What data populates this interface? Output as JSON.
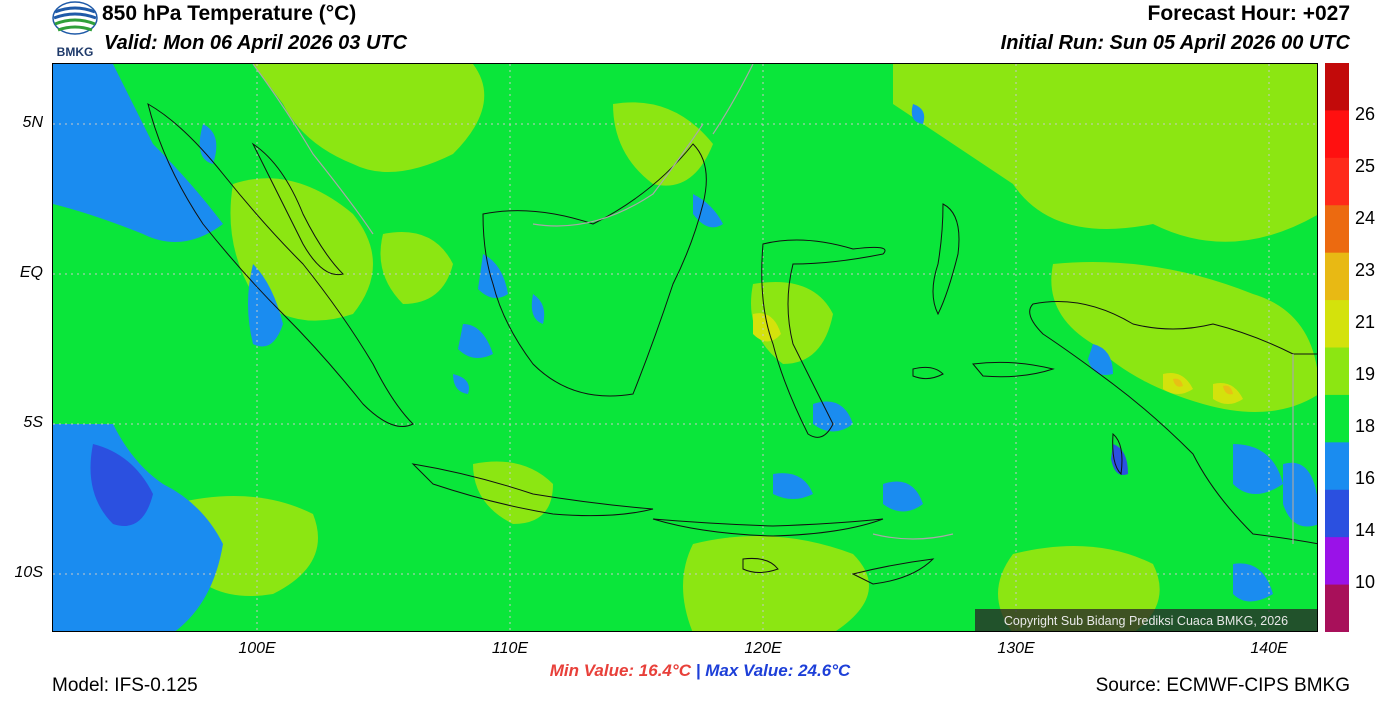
{
  "header": {
    "title": "850 hPa Temperature (°C)",
    "valid": "Valid: Mon 06 April 2026 03 UTC",
    "forecast_hour": "Forecast Hour: +027",
    "initial_run": "Initial Run: Sun 05 April 2026 00 UTC"
  },
  "logo": {
    "text": "BMKG",
    "icon": "bmkg-logo-icon"
  },
  "map": {
    "lat_labels": [
      "5N",
      "EQ",
      "5S",
      "10S"
    ],
    "lon_labels": [
      "100E",
      "110E",
      "120E",
      "130E",
      "140E"
    ],
    "copyright": "Copyright Sub Bidang Prediksi Cuaca BMKG, 2026",
    "colors": {
      "base": "#0ae63a",
      "warm": "#8ce612",
      "cool": "#1a8cf0",
      "coolest": "#2b50e0",
      "hot": "#d4e20c",
      "hotter": "#e8c014"
    }
  },
  "colorbar": {
    "labels": [
      "26",
      "25",
      "24",
      "23",
      "21",
      "19",
      "18",
      "16",
      "14",
      "10"
    ],
    "colors": [
      "#c20a0a",
      "#ff1010",
      "#ff2a1a",
      "#ec6a10",
      "#e8b914",
      "#d4e20c",
      "#8ce612",
      "#0ae63a",
      "#1a8cf0",
      "#2b50e0",
      "#9a12e8",
      "#a8105a"
    ]
  },
  "footer": {
    "min_value": "Min Value: 16.4°C",
    "separator": "|",
    "max_value": "Max Value: 24.6°C",
    "model": "Model: IFS-0.125",
    "source": "Source: ECMWF-CIPS BMKG"
  }
}
